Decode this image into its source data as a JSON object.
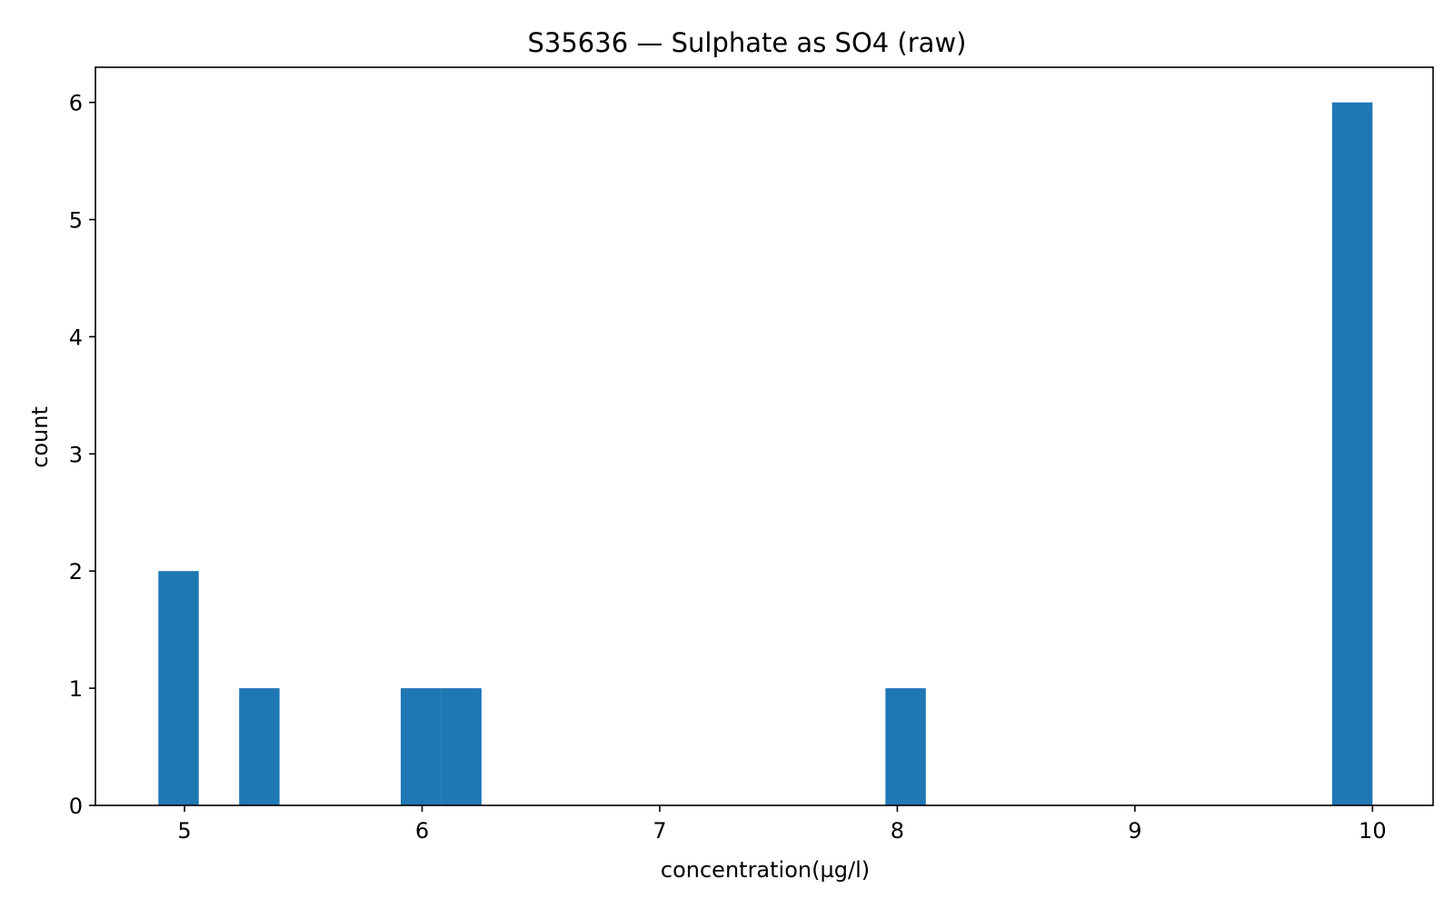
{
  "chart_data": {
    "type": "bar",
    "title": "S35636 — Sulphate as SO4 (raw)",
    "xlabel": "concentration(µg/l)",
    "ylabel": "count",
    "xlim": [
      4.625,
      10.255
    ],
    "ylim": [
      0,
      6.3
    ],
    "xticks": [
      5,
      6,
      7,
      8,
      9,
      10
    ],
    "yticks": [
      0,
      1,
      2,
      3,
      4,
      5,
      6
    ],
    "bin_width": 0.17,
    "bins": [
      {
        "x0": 4.89,
        "x1": 5.06,
        "count": 2
      },
      {
        "x0": 5.23,
        "x1": 5.4,
        "count": 1
      },
      {
        "x0": 5.91,
        "x1": 6.08,
        "count": 1
      },
      {
        "x0": 6.08,
        "x1": 6.25,
        "count": 1
      },
      {
        "x0": 7.95,
        "x1": 8.12,
        "count": 1
      },
      {
        "x0": 9.83,
        "x1": 10.0,
        "count": 6
      }
    ],
    "bar_color": "#1f77b4",
    "grid": false,
    "legend": "none"
  }
}
